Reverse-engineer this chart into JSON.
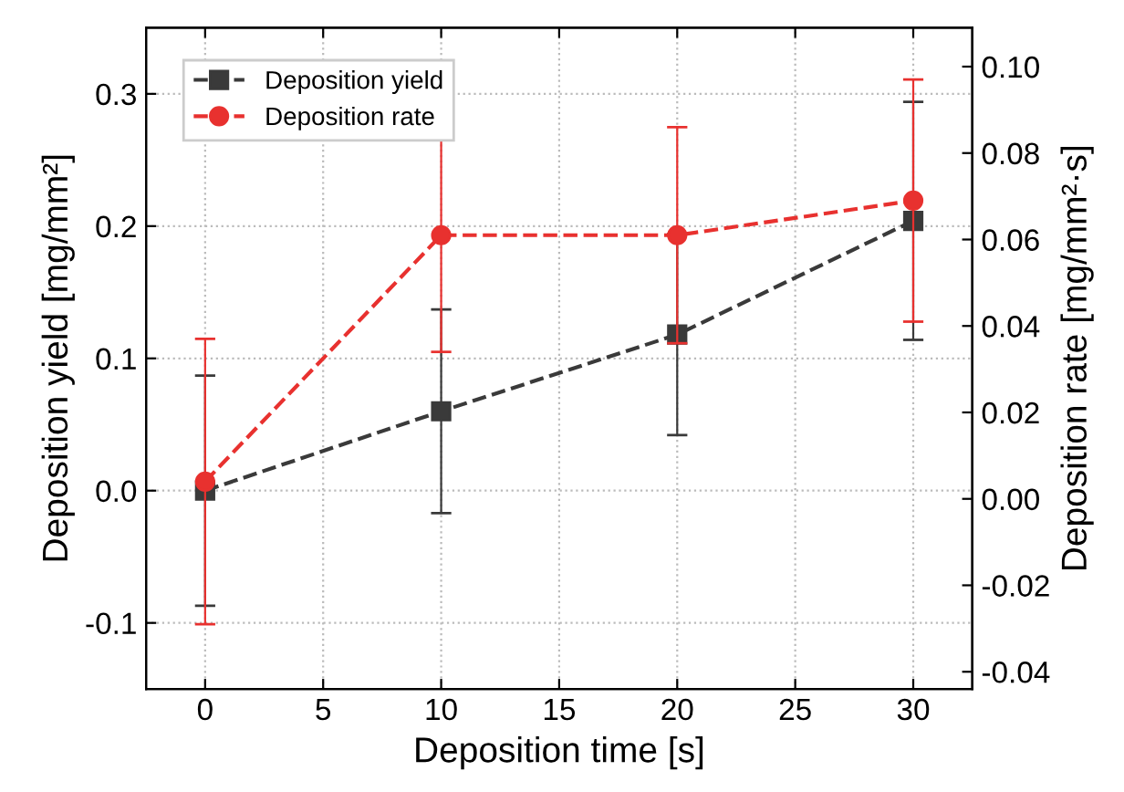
{
  "chart_data": {
    "type": "line",
    "xlabel": "Deposition time [s]",
    "ylabel": "Deposition yield [mg/mm²]",
    "y2label": "Deposition rate [mg/mm²·s]",
    "x": [
      0,
      10,
      20,
      30
    ],
    "series": [
      {
        "name": "Deposition yield",
        "color": "#3a3a3a",
        "marker": "square",
        "values": [
          0.0,
          0.06,
          0.118,
          0.204
        ],
        "errors": [
          0.087,
          0.077,
          0.076,
          0.09
        ]
      },
      {
        "name": "Deposition rate",
        "color": "#e8312f",
        "marker": "circle",
        "axis": "y2",
        "values": [
          0.004,
          0.061,
          0.061,
          0.069
        ],
        "errors": [
          0.033,
          0.027,
          0.025,
          0.028
        ]
      }
    ],
    "xlim": [
      -2.5,
      32.5
    ],
    "xticks": [
      0,
      5,
      10,
      15,
      20,
      25,
      30
    ],
    "ylim": [
      -0.15,
      0.35
    ],
    "yticks": [
      -0.1,
      {
        "value": 0,
        "label": "0.0"
      },
      0.1,
      0.2,
      0.3
    ],
    "y2lim": [
      -0.044,
      0.109
    ],
    "y2ticks": [
      {
        "value": -0.04,
        "label": "-0.04"
      },
      {
        "value": -0.02,
        "label": "-0.02"
      },
      {
        "value": 0,
        "label": "0.00"
      },
      {
        "value": 0.02,
        "label": "0.02"
      },
      {
        "value": 0.04,
        "label": "0.04"
      },
      {
        "value": 0.06,
        "label": "0.06"
      },
      {
        "value": 0.08,
        "label": "0.08"
      },
      {
        "value": 0.1,
        "label": "0.10"
      }
    ],
    "line_style": "dashed",
    "grid": true,
    "legend": "top left"
  }
}
